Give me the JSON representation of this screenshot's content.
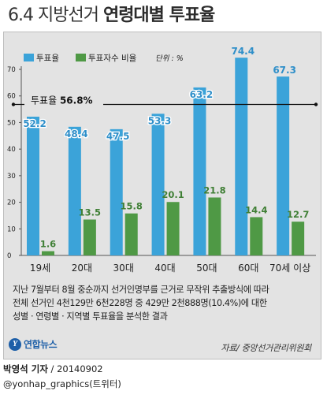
{
  "header": {
    "title_prefix": "6.4 지방선거",
    "title_main": "연령대별 투표율"
  },
  "chart_data": {
    "type": "bar",
    "categories": [
      "19세",
      "20대",
      "30대",
      "40대",
      "50대",
      "60대",
      "70세 이상"
    ],
    "series": [
      {
        "name": "투표율",
        "values": [
          52.2,
          48.4,
          47.5,
          53.3,
          63.2,
          74.4,
          67.3
        ],
        "color": "#3ba3d9",
        "label_color": "#ffffff",
        "top_label_color": "#2f8fc9"
      },
      {
        "name": "투표자수 비율",
        "values": [
          1.6,
          13.5,
          15.8,
          20.1,
          21.8,
          14.4,
          12.7
        ],
        "color": "#4f9945",
        "label_color": "#3f7f35"
      }
    ],
    "unit_label": "단위 : %",
    "ylim": [
      0,
      70
    ],
    "yticks": [
      0,
      10,
      20,
      30,
      40,
      50,
      60,
      70
    ],
    "reference_line": {
      "value": 56.8,
      "label": "투표율 56.8%"
    },
    "legend_position": "top-left",
    "grid": false
  },
  "footnote": {
    "lines": [
      "지난 7월부터 8월 중순까지 선거인명부를 근거로 무작위 추출방식에 따라",
      "전체 선거인 4천129만 6천228명 중 429만 2천888명(10.4%)에 대한",
      "성별 · 연령별 · 지역별 투표율을 분석한 결과"
    ]
  },
  "brand": {
    "logo_text": "연합뉴스",
    "logo_mark": "Y"
  },
  "source": "자료/ 중앙선거관리위원회",
  "byline": {
    "author": "박영석 기자",
    "date": " / 20140902"
  },
  "twitter": "@yonhap_graphics(트위터)"
}
